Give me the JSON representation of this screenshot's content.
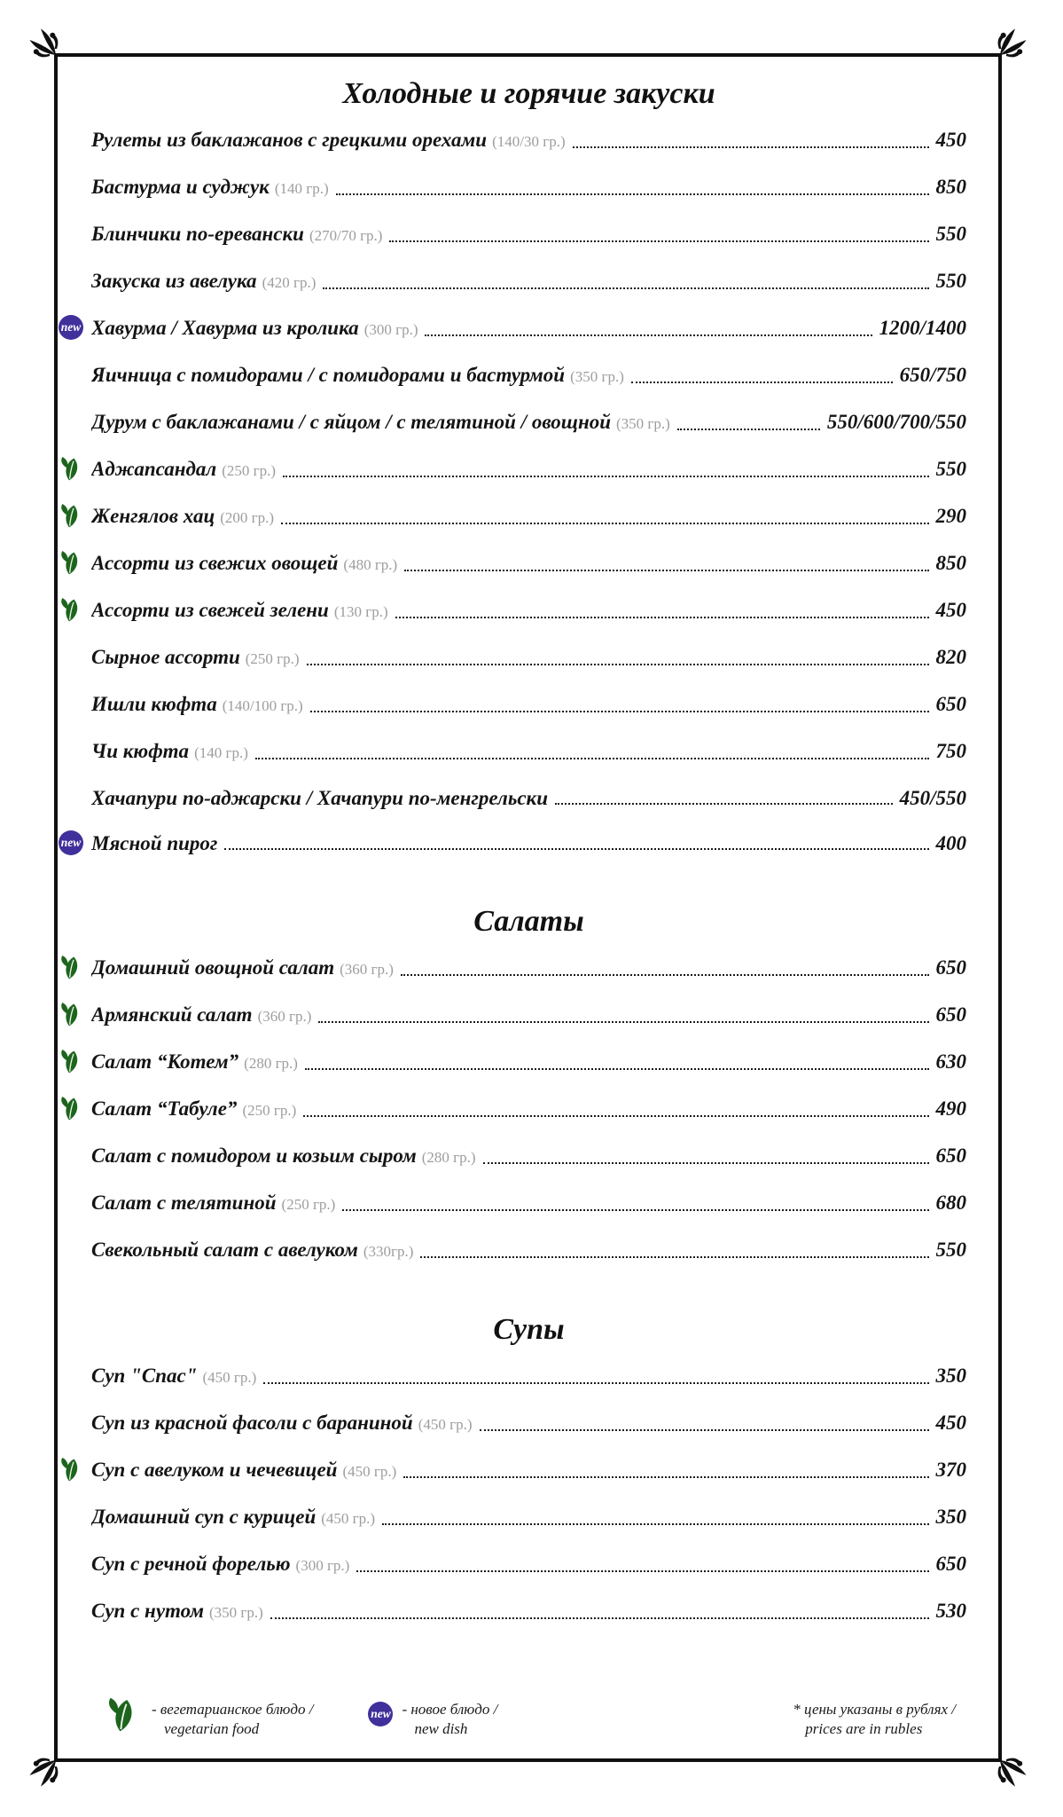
{
  "menu": {
    "sections": [
      {
        "title": "Холодные и горячие закуски",
        "items": [
          {
            "name": "Рулеты из баклажанов с грецкими орехами",
            "weight": "(140/30 гр.)",
            "price": "450",
            "veg": false,
            "new": false
          },
          {
            "name": "Бастурма и суджук",
            "weight": "(140 гр.)",
            "price": "850",
            "veg": false,
            "new": false
          },
          {
            "name": "Блинчики по-еревански",
            "weight": "(270/70 гр.)",
            "price": "550",
            "veg": false,
            "new": false
          },
          {
            "name": "Закуска из авелука",
            "weight": "(420 гр.)",
            "price": "550",
            "veg": false,
            "new": false
          },
          {
            "name": "Хавурма / Хавурма из кролика",
            "weight": "(300 гр.)",
            "price": "1200/1400",
            "veg": false,
            "new": true
          },
          {
            "name": "Яичница с помидорами / с помидорами и бастурмой",
            "weight": "(350 гр.)",
            "price": "650/750",
            "veg": false,
            "new": false
          },
          {
            "name": "Дурум с баклажанами / с яйцом / с телятиной / овощной",
            "weight": "(350 гр.)",
            "price": "550/600/700/550",
            "veg": false,
            "new": false
          },
          {
            "name": "Аджапсандал",
            "weight": "(250 гр.)",
            "price": "550",
            "veg": true,
            "new": false
          },
          {
            "name": "Женгялов хац",
            "weight": "(200 гр.)",
            "price": "290",
            "veg": true,
            "new": false
          },
          {
            "name": "Ассорти из свежих овощей",
            "weight": "(480 гр.)",
            "price": "850",
            "veg": true,
            "new": false
          },
          {
            "name": "Ассорти из свежей зелени",
            "weight": "(130 гр.)",
            "price": "450",
            "veg": true,
            "new": false
          },
          {
            "name": "Сырное ассорти",
            "weight": "(250 гр.)",
            "price": "820",
            "veg": false,
            "new": false
          },
          {
            "name": "Ишли кюфта",
            "weight": "(140/100 гр.)",
            "price": "650",
            "veg": false,
            "new": false
          },
          {
            "name": "Чи кюфта",
            "weight": "(140 гр.)",
            "price": "750",
            "veg": false,
            "new": false
          },
          {
            "name": "Хачапури по-аджарски / Хачапури по-менгрельски",
            "weight": "",
            "price": "450/550",
            "veg": false,
            "new": false
          },
          {
            "name": "Мясной пирог",
            "weight": "",
            "price": "400",
            "veg": false,
            "new": true
          }
        ]
      },
      {
        "title": "Салаты",
        "items": [
          {
            "name": "Домашний овощной салат",
            "weight": "(360 гр.)",
            "price": "650",
            "veg": true,
            "new": false
          },
          {
            "name": "Армянский салат",
            "weight": "(360 гр.)",
            "price": "650",
            "veg": true,
            "new": false
          },
          {
            "name": "Салат “Котем”",
            "weight": "(280 гр.)",
            "price": "630",
            "veg": true,
            "new": false
          },
          {
            "name": "Салат “Табуле”",
            "weight": "(250 гр.)",
            "price": "490",
            "veg": true,
            "new": false
          },
          {
            "name": "Салат с помидором и козьим сыром",
            "weight": "(280 гр.)",
            "price": "650",
            "veg": false,
            "new": false
          },
          {
            "name": "Салат с телятиной",
            "weight": "(250 гр.)",
            "price": "680",
            "veg": false,
            "new": false
          },
          {
            "name": "Свекольный салат с авелуком",
            "weight": "(330гр.)",
            "price": "550",
            "veg": false,
            "new": false
          }
        ]
      },
      {
        "title": "Супы",
        "items": [
          {
            "name": "Суп \"Спас\"",
            "weight": "(450 гр.)",
            "price": "350",
            "veg": false,
            "new": false
          },
          {
            "name": "Суп из красной фасоли с бараниной",
            "weight": "(450 гр.)",
            "price": "450",
            "veg": false,
            "new": false
          },
          {
            "name": "Суп с авелуком и чечевицей",
            "weight": "(450 гр.)",
            "price": "370",
            "veg": true,
            "new": false
          },
          {
            "name": "Домашний суп с курицей",
            "weight": "(450 гр.)",
            "price": "350",
            "veg": false,
            "new": false
          },
          {
            "name": "Суп с речной форелью",
            "weight": "(300 гр.)",
            "price": "650",
            "veg": false,
            "new": false
          },
          {
            "name": "Суп с нутом",
            "weight": "(350 гр.)",
            "price": "530",
            "veg": false,
            "new": false
          }
        ]
      }
    ],
    "legend": {
      "new_badge_text": "new",
      "vegetarian_ru": "- вегетарианское блюдо /",
      "vegetarian_en": "vegetarian food",
      "new_ru": "- новое блюдо /",
      "new_en": "new dish",
      "price_note_ru": "* цены указаны в рублях /",
      "price_note_en": "prices are in rubles"
    },
    "colors": {
      "leaf_green": "#1d651d",
      "new_badge_purple": "#40309b",
      "border_black": "#101010",
      "weight_gray": "#9d9d9d"
    },
    "icons": {
      "vegetarian": "leaf-icon",
      "new_dish": "new-badge-icon",
      "corner": "corner-flourish-icon"
    }
  }
}
